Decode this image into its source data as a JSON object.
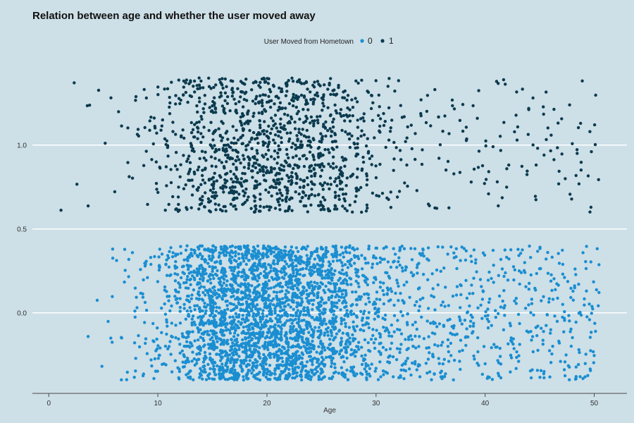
{
  "chart_data": {
    "type": "scatter",
    "title": "Relation between age and whether the user moved away",
    "xlabel": "Age",
    "ylabel": "",
    "xlim": [
      -1.5,
      53
    ],
    "ylim": [
      -0.48,
      1.52
    ],
    "x_ticks": [
      0,
      10,
      20,
      30,
      40,
      50
    ],
    "x_tick_labels": [
      "0",
      "10",
      "20",
      "30",
      "40",
      "50"
    ],
    "y_ticks": [
      0.0,
      0.5,
      1.0
    ],
    "y_tick_labels": [
      "0.0",
      "0.5",
      "1.0"
    ],
    "grid": "horizontal",
    "jitter": "vertical ±0.4",
    "legend": {
      "title": "User Moved from Hometown",
      "placement": "top-center"
    },
    "series": [
      {
        "name": "0",
        "color": "#1a8ed1",
        "y_center": 0,
        "density_by_age": [
          [
            4,
            2
          ],
          [
            5,
            2
          ],
          [
            6,
            6
          ],
          [
            7,
            10
          ],
          [
            8,
            14
          ],
          [
            9,
            20
          ],
          [
            10,
            28
          ],
          [
            11,
            38
          ],
          [
            12,
            60
          ],
          [
            13,
            95
          ],
          [
            14,
            140
          ],
          [
            15,
            170
          ],
          [
            16,
            180
          ],
          [
            17,
            185
          ],
          [
            18,
            190
          ],
          [
            19,
            190
          ],
          [
            20,
            190
          ],
          [
            21,
            185
          ],
          [
            22,
            180
          ],
          [
            23,
            175
          ],
          [
            24,
            165
          ],
          [
            25,
            155
          ],
          [
            26,
            130
          ],
          [
            27,
            105
          ],
          [
            28,
            80
          ],
          [
            29,
            65
          ],
          [
            30,
            55
          ],
          [
            31,
            48
          ],
          [
            32,
            42
          ],
          [
            33,
            38
          ],
          [
            34,
            35
          ],
          [
            35,
            32
          ],
          [
            36,
            30
          ],
          [
            37,
            28
          ],
          [
            38,
            28
          ],
          [
            39,
            26
          ],
          [
            40,
            26
          ],
          [
            41,
            25
          ],
          [
            42,
            25
          ],
          [
            43,
            24
          ],
          [
            44,
            24
          ],
          [
            45,
            24
          ],
          [
            46,
            23
          ],
          [
            47,
            23
          ],
          [
            48,
            23
          ],
          [
            49,
            22
          ],
          [
            50,
            22
          ]
        ]
      },
      {
        "name": "1",
        "color": "#0b3a4e",
        "y_center": 1,
        "density_by_age": [
          [
            0.7,
            1
          ],
          [
            2,
            1
          ],
          [
            2.6,
            1
          ],
          [
            3.2,
            2
          ],
          [
            4,
            1
          ],
          [
            5,
            2
          ],
          [
            6,
            3
          ],
          [
            7,
            4
          ],
          [
            8,
            6
          ],
          [
            9,
            10
          ],
          [
            10,
            16
          ],
          [
            11,
            22
          ],
          [
            12,
            30
          ],
          [
            13,
            42
          ],
          [
            14,
            55
          ],
          [
            15,
            62
          ],
          [
            16,
            68
          ],
          [
            17,
            72
          ],
          [
            18,
            75
          ],
          [
            19,
            76
          ],
          [
            20,
            76
          ],
          [
            21,
            75
          ],
          [
            22,
            74
          ],
          [
            23,
            72
          ],
          [
            24,
            70
          ],
          [
            25,
            66
          ],
          [
            26,
            60
          ],
          [
            27,
            50
          ],
          [
            28,
            38
          ],
          [
            29,
            28
          ],
          [
            30,
            22
          ],
          [
            31,
            16
          ],
          [
            32,
            12
          ],
          [
            33,
            9
          ],
          [
            34,
            8
          ],
          [
            35,
            8
          ],
          [
            36,
            8
          ],
          [
            37,
            7
          ],
          [
            38,
            7
          ],
          [
            39,
            7
          ],
          [
            40,
            7
          ],
          [
            41,
            7
          ],
          [
            42,
            7
          ],
          [
            43,
            7
          ],
          [
            44,
            7
          ],
          [
            45,
            7
          ],
          [
            46,
            7
          ],
          [
            47,
            7
          ],
          [
            48,
            7
          ],
          [
            49,
            7
          ],
          [
            50,
            8
          ]
        ]
      }
    ]
  }
}
